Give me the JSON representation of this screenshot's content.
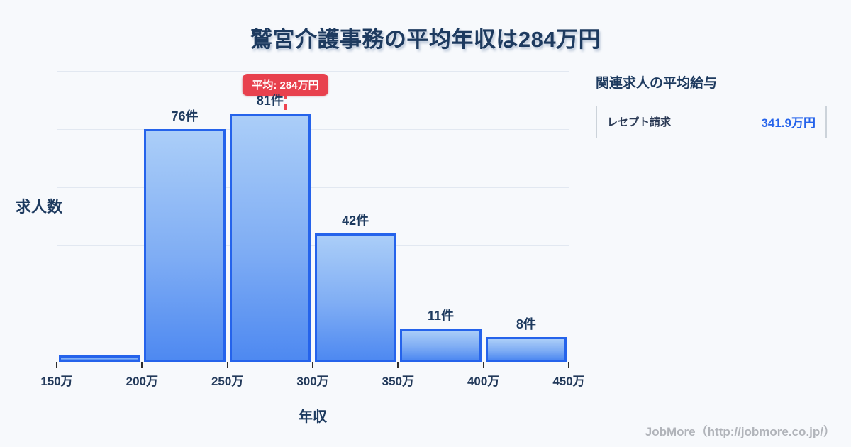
{
  "page": {
    "title": "鷲宮介護事務の平均年収は284万円",
    "footer": "JobMore（http://jobmore.co.jp/）"
  },
  "chart_data": {
    "type": "bar",
    "title": "鷲宮介護事務の平均年収は284万円",
    "xlabel": "年収",
    "ylabel": "求人数",
    "categories": [
      "150万-200万",
      "200万-250万",
      "250万-300万",
      "300万-350万",
      "350万-400万",
      "400万-450万"
    ],
    "values": [
      2,
      76,
      81,
      42,
      11,
      8
    ],
    "bar_labels": [
      "",
      "76件",
      "81件",
      "42件",
      "11件",
      "8件"
    ],
    "tick_labels": [
      "150万",
      "200万",
      "250万",
      "300万",
      "350万",
      "400万",
      "450万"
    ],
    "xlim": [
      150,
      450
    ],
    "ylim": [
      0,
      95
    ],
    "grid": true,
    "gridline_count": 5,
    "legend": "none",
    "mean": 284,
    "mean_label": "平均: 284万円",
    "colors": {
      "bar_border": "#2563eb",
      "bar_fill_top": "#abcef8",
      "bar_fill_bottom": "#4e89f1",
      "mean_line": "#ee4450",
      "mean_badge_bg": "#e8414e",
      "grid": "#e2e8f1",
      "text_dark": "#1d3a5f"
    }
  },
  "side_panel": {
    "heading": "関連求人の平均給与",
    "rows": [
      {
        "label": "レセプト請求",
        "value": "341.9万円"
      }
    ],
    "value_color": "#2563eb"
  }
}
